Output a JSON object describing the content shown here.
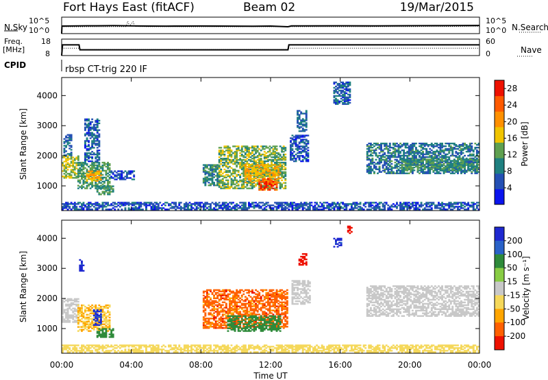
{
  "header": {
    "station": "Fort Hays East (fitACF)",
    "beam": "Beam 02",
    "date": "19/Mar/2015"
  },
  "summary_panels": {
    "nsky": {
      "label": "N.Sky",
      "right_label": "N.Search",
      "y_left_ticks": [
        "10^5",
        "10^0"
      ],
      "y_right_ticks": [
        "10^5",
        "10^0"
      ]
    },
    "freq": {
      "label_line1": "Freq.",
      "label_line2": "[MHz]",
      "right_label": "Nave",
      "y_left_ticks": [
        "18",
        "8"
      ],
      "y_right_ticks": [
        "60",
        "0"
      ]
    },
    "cpid": {
      "label": "CPID",
      "text": "rbsp CT-trig 220 IF"
    }
  },
  "colors": {
    "power_scale": [
      "#0a14ee",
      "#2450b4",
      "#1f8080",
      "#5fa050",
      "#f0c400",
      "#ff9000",
      "#ff5a00",
      "#ee1100"
    ],
    "velocity_scale": [
      "#1e28d0",
      "#2a62c8",
      "#2e8a3a",
      "#88cc44",
      "#c8c8c8",
      "#f5d85a",
      "#ffa500",
      "#ff6000",
      "#ee1100"
    ],
    "ground_scatter": "#c8c8c8"
  },
  "chart_data": [
    {
      "type": "line",
      "name": "nsky-nsearch",
      "ylabel": "N.Sky",
      "x_unit": "hours UT",
      "yscale": "log",
      "ylim": [
        1,
        100000
      ],
      "series": [
        {
          "name": "N.Sky",
          "style": "solid",
          "x": [
            0,
            0.02,
            1,
            2,
            3,
            4,
            5,
            6,
            7,
            8,
            9,
            10,
            11,
            12,
            13,
            13.2,
            14,
            16,
            18,
            20,
            22,
            24
          ],
          "y": [
            1,
            200,
            230,
            240,
            260,
            230,
            200,
            190,
            200,
            210,
            200,
            190,
            180,
            200,
            120,
            220,
            230,
            240,
            230,
            250,
            260,
            300
          ]
        },
        {
          "name": "N.Search",
          "style": "dotted",
          "x": [
            0,
            2,
            3.7,
            3.8,
            3.9,
            4.1,
            4.2,
            5,
            8,
            12,
            16,
            20,
            24
          ],
          "y": [
            120,
            130,
            140,
            5000,
            200,
            4000,
            150,
            130,
            120,
            130,
            130,
            140,
            150
          ]
        }
      ]
    },
    {
      "type": "line",
      "name": "frequency-nave",
      "ylabel": "Freq. [MHz]",
      "x_unit": "hours UT",
      "ylim": [
        8,
        18
      ],
      "y2lim": [
        0,
        60
      ],
      "series": [
        {
          "name": "Freq",
          "style": "solid",
          "x": [
            0,
            0.05,
            1.0,
            1.05,
            13.0,
            13.05,
            24
          ],
          "y": [
            8,
            14.5,
            14.5,
            11.5,
            11.5,
            14.5,
            14.5
          ]
        },
        {
          "name": "Nave",
          "style": "dotted",
          "axis": "right",
          "x": [
            0,
            1.0,
            1.05,
            13.0,
            13.05,
            24
          ],
          "y": [
            27,
            27,
            22,
            22,
            27,
            27
          ]
        }
      ]
    },
    {
      "type": "heatmap",
      "name": "power",
      "ylabel": "Slant Range [km]",
      "x_unit": "hours UT",
      "xlim": [
        0,
        24
      ],
      "ylim": [
        180,
        4600
      ],
      "yticks": [
        1000,
        2000,
        3000,
        4000
      ],
      "colorbar": {
        "label": "Power [dB]",
        "ticks": [
          4,
          8,
          12,
          16,
          20,
          24,
          28
        ],
        "range": [
          0,
          30
        ]
      },
      "regions": [
        {
          "t0": 0.0,
          "t1": 0.9,
          "r0": 1250,
          "r1": 2000,
          "value": 16
        },
        {
          "t0": 0.1,
          "t1": 0.6,
          "r0": 2000,
          "r1": 2700,
          "value": 8
        },
        {
          "t0": 0.9,
          "t1": 2.8,
          "r0": 900,
          "r1": 1800,
          "value": 12
        },
        {
          "t0": 1.4,
          "t1": 2.3,
          "r0": 1150,
          "r1": 1500,
          "value": 20
        },
        {
          "t0": 1.3,
          "t1": 2.2,
          "r0": 1800,
          "r1": 3200,
          "value": 7
        },
        {
          "t0": 2.0,
          "t1": 3.0,
          "r0": 700,
          "r1": 1000,
          "value": 12
        },
        {
          "t0": 2.8,
          "t1": 4.2,
          "r0": 1200,
          "r1": 1500,
          "value": 6
        },
        {
          "t0": 8.1,
          "t1": 9.0,
          "r0": 1000,
          "r1": 1700,
          "value": 10
        },
        {
          "t0": 9.0,
          "t1": 12.8,
          "r0": 900,
          "r1": 2300,
          "value": 14
        },
        {
          "t0": 10.5,
          "t1": 12.5,
          "r0": 1100,
          "r1": 1700,
          "value": 19
        },
        {
          "t0": 11.3,
          "t1": 12.3,
          "r0": 850,
          "r1": 1250,
          "value": 27
        },
        {
          "t0": 13.1,
          "t1": 14.1,
          "r0": 1800,
          "r1": 2700,
          "value": 6
        },
        {
          "t0": 13.5,
          "t1": 14.0,
          "r0": 2800,
          "r1": 3500,
          "value": 8
        },
        {
          "t0": 15.6,
          "t1": 16.6,
          "r0": 3700,
          "r1": 4450,
          "value": 7
        },
        {
          "t0": 17.5,
          "t1": 24.0,
          "r0": 1400,
          "r1": 2400,
          "value": 9
        },
        {
          "t0": 19.5,
          "t1": 24.0,
          "r0": 1500,
          "r1": 1900,
          "value": 12
        },
        {
          "t0": 0.0,
          "t1": 24.0,
          "r0": 200,
          "r1": 450,
          "value": 6
        }
      ]
    },
    {
      "type": "heatmap",
      "name": "velocity",
      "ylabel": "Slant Range [km]",
      "x_unit": "hours UT",
      "xlim": [
        0,
        24
      ],
      "ylim": [
        180,
        4600
      ],
      "yticks": [
        1000,
        2000,
        3000,
        4000
      ],
      "xticks": [
        "00:00",
        "04:00",
        "08:00",
        "12:00",
        "16:00",
        "20:00",
        "00:00"
      ],
      "xlabel": "Time UT",
      "colorbar": {
        "label": "Velocity [m s⁻¹]",
        "ticks": [
          "200",
          "100",
          "50",
          "15",
          "-15",
          "-50",
          "-100",
          "-200"
        ],
        "range": [
          -250,
          250
        ]
      },
      "regions": [
        {
          "t0": 0.0,
          "t1": 0.9,
          "r0": 1200,
          "r1": 2000,
          "value": 0,
          "ground_scatter": true
        },
        {
          "t0": 0.9,
          "t1": 2.8,
          "r0": 900,
          "r1": 1800,
          "value": -30
        },
        {
          "t0": 1.8,
          "t1": 2.3,
          "r0": 1100,
          "r1": 1600,
          "value": 180
        },
        {
          "t0": 2.0,
          "t1": 3.0,
          "r0": 700,
          "r1": 1000,
          "value": 40
        },
        {
          "t0": 1.0,
          "t1": 1.3,
          "r0": 2900,
          "r1": 3300,
          "value": 180
        },
        {
          "t0": 8.1,
          "t1": 12.9,
          "r0": 1000,
          "r1": 2300,
          "value": -110
        },
        {
          "t0": 9.5,
          "t1": 12.5,
          "r0": 900,
          "r1": 1400,
          "value": 40
        },
        {
          "t0": 13.6,
          "t1": 14.0,
          "r0": 3100,
          "r1": 3500,
          "value": -230
        },
        {
          "t0": 15.6,
          "t1": 16.0,
          "r0": 3700,
          "r1": 4000,
          "value": 180
        },
        {
          "t0": 16.4,
          "t1": 16.7,
          "r0": 4150,
          "r1": 4400,
          "value": -230
        },
        {
          "t0": 13.2,
          "t1": 14.2,
          "r0": 1800,
          "r1": 2600,
          "value": 0,
          "ground_scatter": true
        },
        {
          "t0": 17.5,
          "t1": 24.0,
          "r0": 1400,
          "r1": 2400,
          "value": 0,
          "ground_scatter": true
        },
        {
          "t0": 0.0,
          "t1": 24.0,
          "r0": 200,
          "r1": 450,
          "value": -20
        }
      ]
    }
  ]
}
